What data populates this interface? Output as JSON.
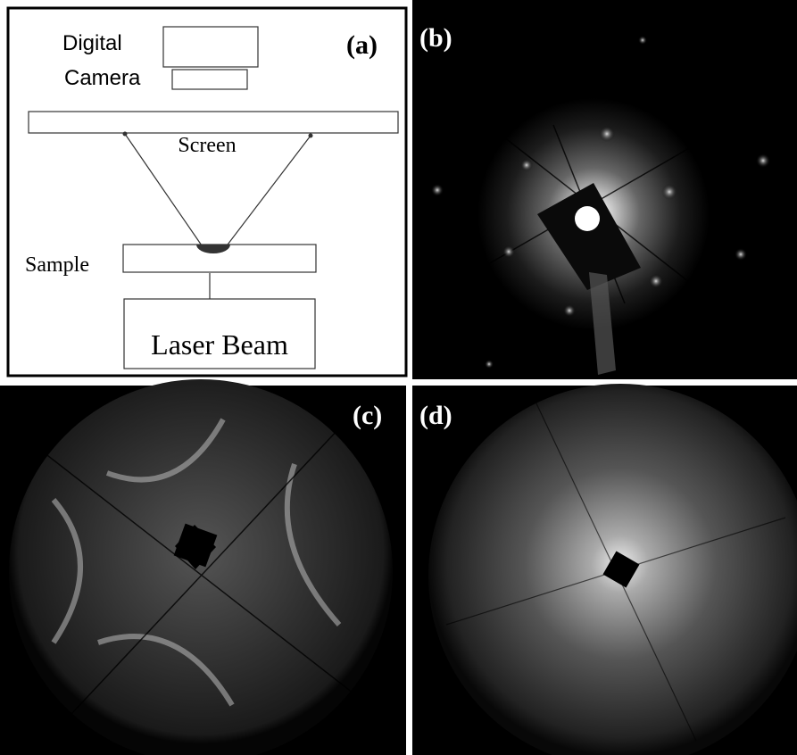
{
  "panels": {
    "a": {
      "label": "(a)",
      "camera_line1": "Digital",
      "camera_line2": "Camera",
      "screen": "Screen",
      "sample": "Sample",
      "laser": "Laser Beam"
    },
    "b": {
      "label": "(b)"
    },
    "c": {
      "label": "(c)"
    },
    "d": {
      "label": "(d)"
    }
  }
}
